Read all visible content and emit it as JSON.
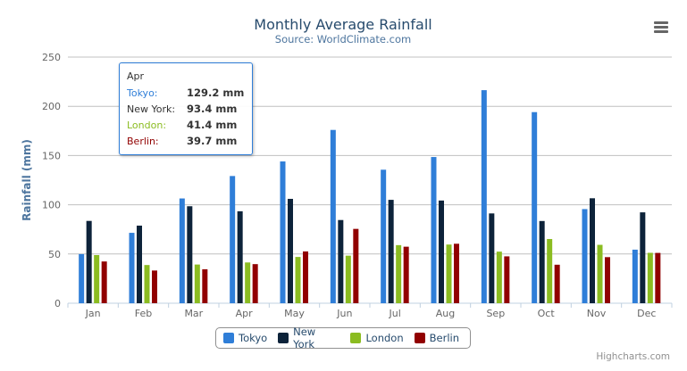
{
  "chart_data": {
    "type": "bar",
    "title": "Monthly Average Rainfall",
    "subtitle": "Source: WorldClimate.com",
    "xlabel": "",
    "ylabel": "Rainfall (mm)",
    "ylim": [
      0,
      250
    ],
    "yticks": [
      0,
      50,
      100,
      150,
      200,
      250
    ],
    "grid": true,
    "legend": "bottom-center",
    "categories": [
      "Jan",
      "Feb",
      "Mar",
      "Apr",
      "May",
      "Jun",
      "Jul",
      "Aug",
      "Sep",
      "Oct",
      "Nov",
      "Dec"
    ],
    "series": [
      {
        "name": "Tokyo",
        "color": "#2f7ed8",
        "values": [
          49.9,
          71.5,
          106.4,
          129.2,
          144.0,
          176.0,
          135.6,
          148.5,
          216.4,
          194.1,
          95.6,
          54.4
        ]
      },
      {
        "name": "New York",
        "color": "#0d233a",
        "values": [
          83.6,
          78.8,
          98.5,
          93.4,
          106.0,
          84.5,
          105.0,
          104.3,
          91.2,
          83.5,
          106.6,
          92.3
        ]
      },
      {
        "name": "London",
        "color": "#8bbc21",
        "values": [
          48.9,
          38.8,
          39.3,
          41.4,
          47.0,
          48.3,
          59.0,
          59.6,
          52.4,
          65.2,
          59.3,
          51.2
        ]
      },
      {
        "name": "Berlin",
        "color": "#910000",
        "values": [
          42.4,
          33.2,
          34.5,
          39.7,
          52.6,
          75.5,
          57.4,
          60.4,
          47.6,
          39.1,
          46.8,
          51.1
        ]
      }
    ]
  },
  "tooltip": {
    "header": "Apr",
    "rows": [
      {
        "name": "Tokyo:",
        "value": "129.2 mm",
        "color": "#2f7ed8"
      },
      {
        "name": "New York:",
        "value": "93.4 mm",
        "color": "#333333"
      },
      {
        "name": "London:",
        "value": "41.4 mm",
        "color": "#8bbc21"
      },
      {
        "name": "Berlin:",
        "value": "39.7 mm",
        "color": "#910000"
      }
    ]
  },
  "credits": "Highcharts.com",
  "menu_icon": "hamburger-menu-icon"
}
